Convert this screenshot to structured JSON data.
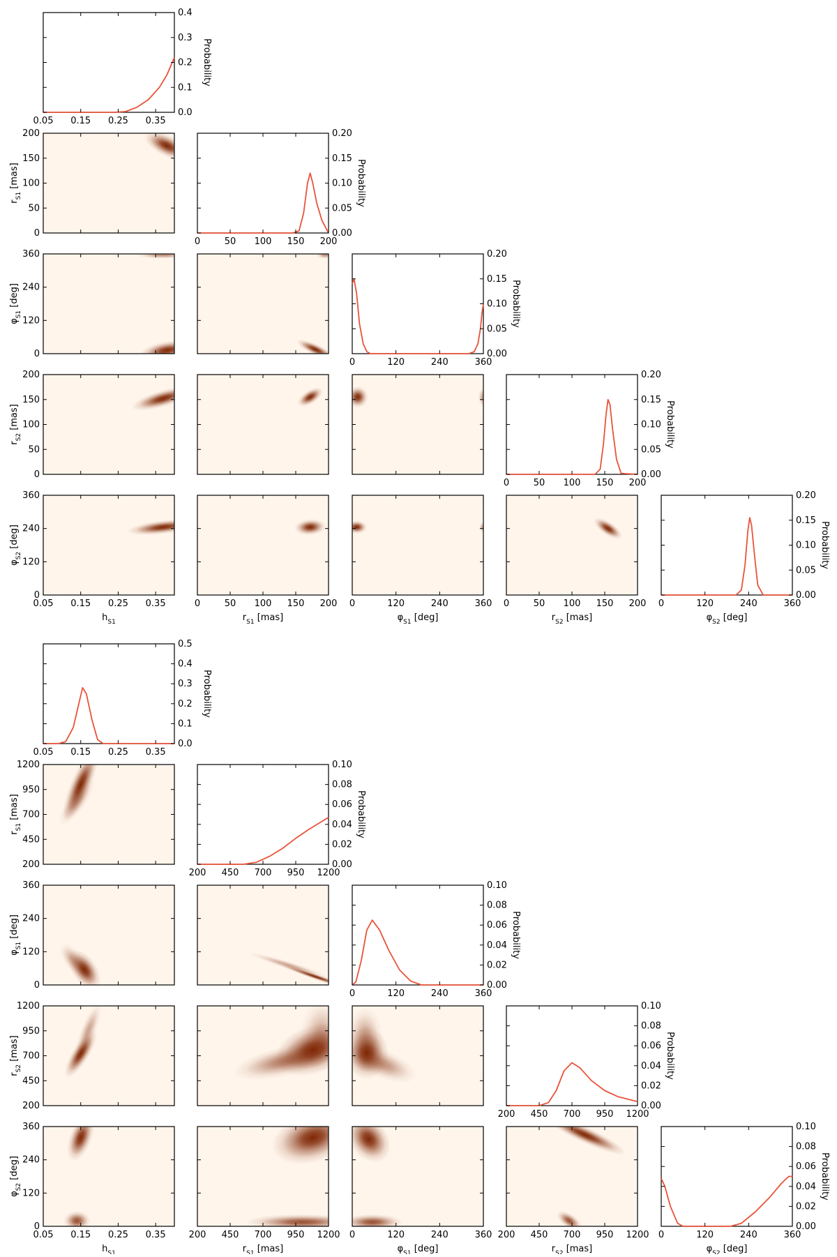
{
  "chart_data": [
    {
      "type": "heatmap",
      "kind": "corner-plot",
      "colormap": {
        "low": "#fff5eb",
        "high": "#7f2704"
      },
      "line_color": "#e8533a",
      "parameters": [
        {
          "id": "h",
          "label": "h",
          "sub": "S1",
          "unit": "",
          "ticks": [
            0.05,
            0.15,
            0.25,
            0.35
          ],
          "tick_labels": [
            "0.05",
            "0.15",
            "0.25",
            "0.35"
          ],
          "range": [
            0.05,
            0.4
          ]
        },
        {
          "id": "r1",
          "label": "r",
          "sub": "S1",
          "unit": " [mas]",
          "ticks": [
            0,
            50,
            100,
            150,
            200
          ],
          "tick_labels": [
            "0",
            "50",
            "100",
            "150",
            "200"
          ],
          "range": [
            0,
            200
          ]
        },
        {
          "id": "p1",
          "label": "φ",
          "sub": "S1",
          "unit": " [deg]",
          "ticks": [
            0,
            120,
            240,
            360
          ],
          "tick_labels": [
            "0",
            "120",
            "240",
            "360"
          ],
          "range": [
            0,
            360
          ]
        },
        {
          "id": "r2",
          "label": "r",
          "sub": "S2",
          "unit": " [mas]",
          "ticks": [
            0,
            50,
            100,
            150,
            200
          ],
          "tick_labels": [
            "0",
            "50",
            "100",
            "150",
            "200"
          ],
          "range": [
            0,
            200
          ]
        },
        {
          "id": "p2",
          "label": "φ",
          "sub": "S2",
          "unit": " [deg]",
          "ticks": [
            0,
            120,
            240,
            360
          ],
          "tick_labels": [
            "0",
            "120",
            "240",
            "360"
          ],
          "range": [
            0,
            360
          ]
        }
      ],
      "marginal_ylabel": "Probability",
      "marginals": [
        {
          "param": "h",
          "ylim": [
            0,
            0.4
          ],
          "yticks": [
            "0.0",
            "0.1",
            "0.2",
            "0.3",
            "0.4"
          ],
          "x": [
            0.05,
            0.24,
            0.27,
            0.3,
            0.33,
            0.36,
            0.38,
            0.4
          ],
          "y": [
            0,
            0,
            0.003,
            0.02,
            0.05,
            0.1,
            0.15,
            0.22
          ]
        },
        {
          "param": "r1",
          "ylim": [
            0,
            0.2
          ],
          "yticks": [
            "0.00",
            "0.05",
            "0.10",
            "0.15",
            "0.20"
          ],
          "x": [
            0,
            145,
            155,
            162,
            168,
            172,
            176,
            182,
            190,
            198,
            200
          ],
          "y": [
            0,
            0,
            0.004,
            0.04,
            0.1,
            0.12,
            0.1,
            0.06,
            0.025,
            0.005,
            0
          ]
        },
        {
          "param": "p1",
          "ylim": [
            0,
            0.2
          ],
          "yticks": [
            "0.00",
            "0.05",
            "0.10",
            "0.15",
            "0.20"
          ],
          "x": [
            0,
            5,
            12,
            20,
            30,
            40,
            50,
            320,
            335,
            345,
            352,
            356,
            360
          ],
          "y": [
            0.14,
            0.15,
            0.12,
            0.06,
            0.02,
            0.004,
            0,
            0,
            0.004,
            0.02,
            0.05,
            0.08,
            0.1
          ]
        },
        {
          "param": "r2",
          "ylim": [
            0,
            0.2
          ],
          "yticks": [
            "0.00",
            "0.05",
            "0.10",
            "0.15",
            "0.20"
          ],
          "x": [
            0,
            135,
            143,
            148,
            152,
            155,
            158,
            162,
            168,
            175,
            200
          ],
          "y": [
            0,
            0,
            0.01,
            0.06,
            0.12,
            0.15,
            0.14,
            0.09,
            0.03,
            0.002,
            0
          ]
        },
        {
          "param": "p2",
          "ylim": [
            0,
            0.2
          ],
          "yticks": [
            "0.00",
            "0.05",
            "0.10",
            "0.15",
            "0.20"
          ],
          "x": [
            0,
            205,
            220,
            230,
            238,
            243,
            248,
            256,
            265,
            280,
            360
          ],
          "y": [
            0,
            0,
            0.01,
            0.06,
            0.13,
            0.155,
            0.14,
            0.08,
            0.02,
            0,
            0
          ]
        }
      ],
      "joints": [
        {
          "x": "h",
          "y": "r1",
          "blobs": [
            {
              "x": 0.38,
              "y": 175,
              "sx": 0.025,
              "sy": 12,
              "rho": -0.6,
              "a": 1
            }
          ]
        },
        {
          "x": "h",
          "y": "p1",
          "blobs": [
            {
              "x": 0.38,
              "y": 12,
              "sx": 0.03,
              "sy": 15,
              "rho": 0.4,
              "a": 1
            },
            {
              "x": 0.37,
              "y": 355,
              "sx": 0.03,
              "sy": 5,
              "rho": 0,
              "a": 0.5
            }
          ]
        },
        {
          "x": "r1",
          "y": "p1",
          "blobs": [
            {
              "x": 180,
              "y": 15,
              "sx": 12,
              "sy": 15,
              "rho": -0.8,
              "a": 1
            },
            {
              "x": 195,
              "y": 355,
              "sx": 6,
              "sy": 5,
              "rho": 0,
              "a": 0.5
            }
          ]
        },
        {
          "x": "h",
          "y": "r2",
          "blobs": [
            {
              "x": 0.37,
              "y": 152,
              "sx": 0.035,
              "sy": 10,
              "rho": 0.7,
              "a": 1
            }
          ]
        },
        {
          "x": "r1",
          "y": "r2",
          "blobs": [
            {
              "x": 172,
              "y": 155,
              "sx": 8,
              "sy": 8,
              "rho": 0.6,
              "a": 1
            }
          ]
        },
        {
          "x": "p1",
          "y": "r2",
          "blobs": [
            {
              "x": 15,
              "y": 155,
              "sx": 12,
              "sy": 9,
              "rho": 0,
              "a": 1
            },
            {
              "x": 358,
              "y": 155,
              "sx": 5,
              "sy": 8,
              "rho": 0,
              "a": 0.4
            }
          ]
        },
        {
          "x": "h",
          "y": "p2",
          "blobs": [
            {
              "x": 0.37,
              "y": 245,
              "sx": 0.04,
              "sy": 12,
              "rho": 0.5,
              "a": 1
            }
          ]
        },
        {
          "x": "r1",
          "y": "p2",
          "blobs": [
            {
              "x": 172,
              "y": 245,
              "sx": 10,
              "sy": 12,
              "rho": 0.1,
              "a": 1
            }
          ]
        },
        {
          "x": "p1",
          "y": "p2",
          "blobs": [
            {
              "x": 12,
              "y": 245,
              "sx": 12,
              "sy": 10,
              "rho": 0,
              "a": 1
            },
            {
              "x": 358,
              "y": 245,
              "sx": 4,
              "sy": 8,
              "rho": 0,
              "a": 0.4
            }
          ]
        },
        {
          "x": "r2",
          "y": "p2",
          "blobs": [
            {
              "x": 155,
              "y": 240,
              "sx": 9,
              "sy": 16,
              "rho": -0.7,
              "a": 1
            }
          ]
        }
      ]
    },
    {
      "type": "heatmap",
      "kind": "corner-plot",
      "colormap": {
        "low": "#fff5eb",
        "high": "#7f2704"
      },
      "line_color": "#e8533a",
      "parameters": [
        {
          "id": "h",
          "label": "h",
          "sub": "S1",
          "unit": "",
          "ticks": [
            0.05,
            0.15,
            0.25,
            0.35
          ],
          "tick_labels": [
            "0.05",
            "0.15",
            "0.25",
            "0.35"
          ],
          "range": [
            0.05,
            0.4
          ]
        },
        {
          "id": "r1",
          "label": "r",
          "sub": "S1",
          "unit": " [mas]",
          "ticks": [
            200,
            450,
            700,
            950,
            1200
          ],
          "tick_labels": [
            "200",
            "450",
            "700",
            "950",
            "1200"
          ],
          "range": [
            200,
            1200
          ]
        },
        {
          "id": "p1",
          "label": "φ",
          "sub": "S1",
          "unit": " [deg]",
          "ticks": [
            0,
            120,
            240,
            360
          ],
          "tick_labels": [
            "0",
            "120",
            "240",
            "360"
          ],
          "range": [
            0,
            360
          ]
        },
        {
          "id": "r2",
          "label": "r",
          "sub": "S2",
          "unit": " [mas]",
          "ticks": [
            200,
            450,
            700,
            950,
            1200
          ],
          "tick_labels": [
            "200",
            "450",
            "700",
            "950",
            "1200"
          ],
          "range": [
            200,
            1200
          ]
        },
        {
          "id": "p2",
          "label": "φ",
          "sub": "S2",
          "unit": " [deg]",
          "ticks": [
            0,
            120,
            240,
            360
          ],
          "tick_labels": [
            "0",
            "120",
            "240",
            "360"
          ],
          "range": [
            0,
            360
          ]
        }
      ],
      "marginal_ylabel": "Probability",
      "marginals": [
        {
          "param": "h",
          "ylim": [
            0,
            0.5
          ],
          "yticks": [
            "0.0",
            "0.1",
            "0.2",
            "0.3",
            "0.4",
            "0.5"
          ],
          "x": [
            0.05,
            0.09,
            0.11,
            0.13,
            0.145,
            0.155,
            0.165,
            0.18,
            0.195,
            0.21,
            0.4
          ],
          "y": [
            0,
            0,
            0.01,
            0.08,
            0.2,
            0.28,
            0.25,
            0.12,
            0.02,
            0,
            0
          ]
        },
        {
          "param": "r1",
          "ylim": [
            0,
            0.1
          ],
          "yticks": [
            "0.00",
            "0.02",
            "0.04",
            "0.06",
            "0.08",
            "0.10"
          ],
          "x": [
            200,
            550,
            650,
            750,
            850,
            950,
            1050,
            1150,
            1200
          ],
          "y": [
            0,
            0,
            0.002,
            0.008,
            0.016,
            0.026,
            0.035,
            0.043,
            0.047
          ]
        },
        {
          "param": "p1",
          "ylim": [
            0,
            0.1
          ],
          "yticks": [
            "0.00",
            "0.02",
            "0.04",
            "0.06",
            "0.08",
            "0.10"
          ],
          "x": [
            0,
            10,
            25,
            40,
            55,
            75,
            100,
            130,
            160,
            190,
            360
          ],
          "y": [
            0,
            0.003,
            0.025,
            0.055,
            0.065,
            0.055,
            0.035,
            0.015,
            0.004,
            0,
            0
          ]
        },
        {
          "param": "r2",
          "ylim": [
            0,
            0.1
          ],
          "yticks": [
            "0.00",
            "0.02",
            "0.04",
            "0.06",
            "0.08",
            "0.10"
          ],
          "x": [
            200,
            450,
            520,
            580,
            640,
            700,
            760,
            850,
            950,
            1050,
            1200
          ],
          "y": [
            0,
            0,
            0.003,
            0.015,
            0.035,
            0.043,
            0.038,
            0.025,
            0.015,
            0.009,
            0.004
          ]
        },
        {
          "param": "p2",
          "ylim": [
            0,
            0.1
          ],
          "yticks": [
            "0.00",
            "0.02",
            "0.04",
            "0.06",
            "0.08",
            "0.10"
          ],
          "x": [
            0,
            10,
            25,
            45,
            60,
            190,
            220,
            260,
            300,
            330,
            350,
            360
          ],
          "y": [
            0.048,
            0.04,
            0.02,
            0.003,
            0,
            0,
            0.003,
            0.015,
            0.03,
            0.043,
            0.05,
            0.05
          ]
        }
      ],
      "joints": [
        {
          "x": "h",
          "y": "r1",
          "blobs": [
            {
              "x": 0.15,
              "y": 1000,
              "sx": 0.02,
              "sy": 150,
              "rho": 0.8,
              "a": 1
            },
            {
              "x": 0.14,
              "y": 830,
              "sx": 0.02,
              "sy": 100,
              "rho": 0.8,
              "a": 0.4
            }
          ]
        },
        {
          "x": "h",
          "y": "p1",
          "blobs": [
            {
              "x": 0.16,
              "y": 55,
              "sx": 0.018,
              "sy": 30,
              "rho": -0.5,
              "a": 1
            },
            {
              "x": 0.13,
              "y": 90,
              "sx": 0.015,
              "sy": 25,
              "rho": -0.6,
              "a": 0.4
            }
          ]
        },
        {
          "x": "r1",
          "y": "p1",
          "blobs": [
            {
              "x": 1100,
              "y": 30,
              "sx": 110,
              "sy": 18,
              "rho": -0.97,
              "a": 1
            },
            {
              "x": 900,
              "y": 70,
              "sx": 130,
              "sy": 20,
              "rho": -0.95,
              "a": 0.4
            }
          ]
        },
        {
          "x": "h",
          "y": "r2",
          "blobs": [
            {
              "x": 0.15,
              "y": 720,
              "sx": 0.018,
              "sy": 100,
              "rho": 0.8,
              "a": 1
            },
            {
              "x": 0.17,
              "y": 950,
              "sx": 0.015,
              "sy": 120,
              "rho": 0.8,
              "a": 0.4
            }
          ]
        },
        {
          "x": "r1",
          "y": "r2",
          "blobs": [
            {
              "x": 1080,
              "y": 760,
              "sx": 120,
              "sy": 110,
              "rho": 0.3,
              "a": 1
            },
            {
              "x": 880,
              "y": 650,
              "sx": 170,
              "sy": 80,
              "rho": 0.6,
              "a": 0.6
            },
            {
              "x": 1150,
              "y": 900,
              "sx": 70,
              "sy": 150,
              "rho": 0,
              "a": 0.4
            }
          ]
        },
        {
          "x": "p1",
          "y": "r2",
          "blobs": [
            {
              "x": 40,
              "y": 730,
              "sx": 25,
              "sy": 110,
              "rho": 0,
              "a": 1
            },
            {
              "x": 80,
              "y": 620,
              "sx": 40,
              "sy": 80,
              "rho": -0.6,
              "a": 0.5
            },
            {
              "x": 35,
              "y": 900,
              "sx": 20,
              "sy": 120,
              "rho": 0,
              "a": 0.4
            }
          ]
        },
        {
          "x": "h",
          "y": "p2",
          "blobs": [
            {
              "x": 0.15,
              "y": 320,
              "sx": 0.015,
              "sy": 35,
              "rho": 0.5,
              "a": 1
            },
            {
              "x": 0.14,
              "y": 20,
              "sx": 0.015,
              "sy": 15,
              "rho": 0,
              "a": 0.8
            }
          ]
        },
        {
          "x": "r1",
          "y": "p2",
          "blobs": [
            {
              "x": 1080,
              "y": 320,
              "sx": 130,
              "sy": 40,
              "rho": 0.3,
              "a": 1
            },
            {
              "x": 1000,
              "y": 15,
              "sx": 180,
              "sy": 12,
              "rho": 0,
              "a": 0.8
            }
          ]
        },
        {
          "x": "p1",
          "y": "p2",
          "blobs": [
            {
              "x": 45,
              "y": 315,
              "sx": 25,
              "sy": 35,
              "rho": -0.3,
              "a": 1
            },
            {
              "x": 55,
              "y": 15,
              "sx": 35,
              "sy": 12,
              "rho": 0,
              "a": 0.8
            }
          ]
        },
        {
          "x": "r2",
          "y": "p2",
          "blobs": [
            {
              "x": 800,
              "y": 330,
              "sx": 130,
              "sy": 30,
              "rho": -0.9,
              "a": 1
            },
            {
              "x": 680,
              "y": 20,
              "sx": 40,
              "sy": 15,
              "rho": -0.6,
              "a": 0.8
            }
          ]
        }
      ]
    }
  ]
}
